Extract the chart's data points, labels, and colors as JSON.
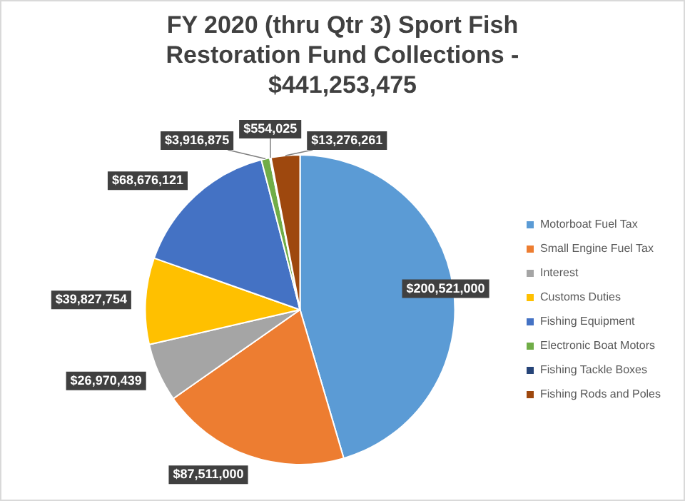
{
  "chart_data": {
    "type": "pie",
    "title": "FY 2020 (thru Qtr 3) Sport Fish Restoration Fund Collections - $441,253,475",
    "categories": [
      "Motorboat Fuel Tax",
      "Small Engine Fuel Tax",
      "Interest",
      "Customs Duties",
      "Fishing Equipment",
      "Electronic Boat Motors",
      "Fishing Tackle Boxes",
      "Fishing Rods and Poles"
    ],
    "values": [
      200521000,
      87511000,
      26970439,
      39827754,
      68676121,
      3916875,
      554025,
      13276261
    ],
    "colors": [
      "#5b9bd5",
      "#ed7d31",
      "#a5a5a5",
      "#ffc000",
      "#4472c4",
      "#70ad47",
      "#264478",
      "#9e480e"
    ],
    "value_labels": [
      "$200,521,000",
      "$87,511,000",
      "$26,970,439",
      "$39,827,754",
      "$68,676,121",
      "$3,916,875",
      "$554,025",
      "$13,276,261"
    ],
    "legend": "right"
  }
}
